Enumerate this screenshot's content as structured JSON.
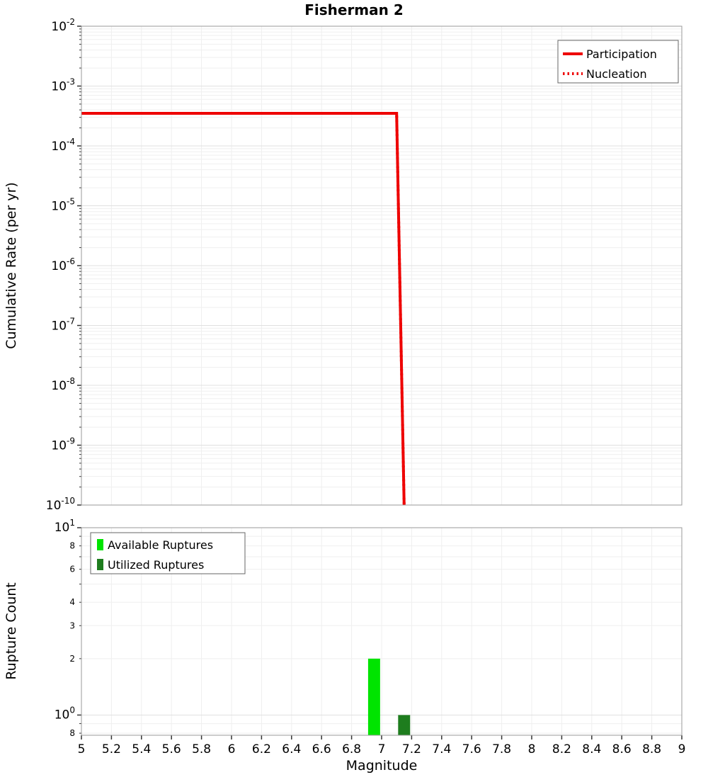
{
  "title": "Fisherman 2",
  "chart_data": [
    {
      "type": "line",
      "title": "Fisherman 2",
      "ylabel": "Cumulative Rate (per yr)",
      "xlabel": "",
      "xlim": [
        5,
        9
      ],
      "y_scale": "log",
      "y_exponent_ticks": [
        -2,
        -3,
        -4,
        -5,
        -6,
        -7,
        -8,
        -9,
        -10
      ],
      "x_ticks": [
        5,
        5.2,
        5.4,
        5.6,
        5.8,
        6,
        6.2,
        6.4,
        6.6,
        6.8,
        7,
        7.2,
        7.4,
        7.6,
        7.8,
        8,
        8.2,
        8.4,
        8.6,
        8.8,
        9
      ],
      "grid": true,
      "legend_position": "top-right",
      "series": [
        {
          "name": "Participation",
          "color": "#ee0000",
          "line_style": "solid",
          "points": [
            [
              5.0,
              0.00035
            ],
            [
              7.1,
              0.00035
            ],
            [
              7.15,
              1e-10
            ]
          ]
        },
        {
          "name": "Nucleation",
          "color": "#ee0000",
          "line_style": "dotted",
          "points": [
            [
              5.0,
              0.00035
            ],
            [
              7.1,
              0.00035
            ],
            [
              7.15,
              1e-10
            ]
          ]
        }
      ]
    },
    {
      "type": "bar",
      "ylabel": "Rupture Count",
      "xlabel": "Magnitude",
      "xlim": [
        5,
        9
      ],
      "ylim": [
        0.78,
        10
      ],
      "y_scale": "log",
      "y_major_ticks": [
        10,
        1
      ],
      "y_minor_labeled_ticks": [
        8,
        6,
        4,
        3,
        2,
        0.8
      ],
      "x_ticks": [
        5,
        5.2,
        5.4,
        5.6,
        5.8,
        6,
        6.2,
        6.4,
        6.6,
        6.8,
        7,
        7.2,
        7.4,
        7.6,
        7.8,
        8,
        8.2,
        8.4,
        8.6,
        8.8,
        9
      ],
      "grid": true,
      "legend_position": "top-left",
      "bar_width_magnitude": 0.08,
      "series": [
        {
          "name": "Available Ruptures",
          "color": "#00e400",
          "bars": [
            {
              "magnitude": 6.95,
              "count": 2
            }
          ]
        },
        {
          "name": "Utilized Ruptures",
          "color": "#1e7d1e",
          "bars": [
            {
              "magnitude": 7.15,
              "count": 1
            }
          ]
        }
      ]
    }
  ]
}
